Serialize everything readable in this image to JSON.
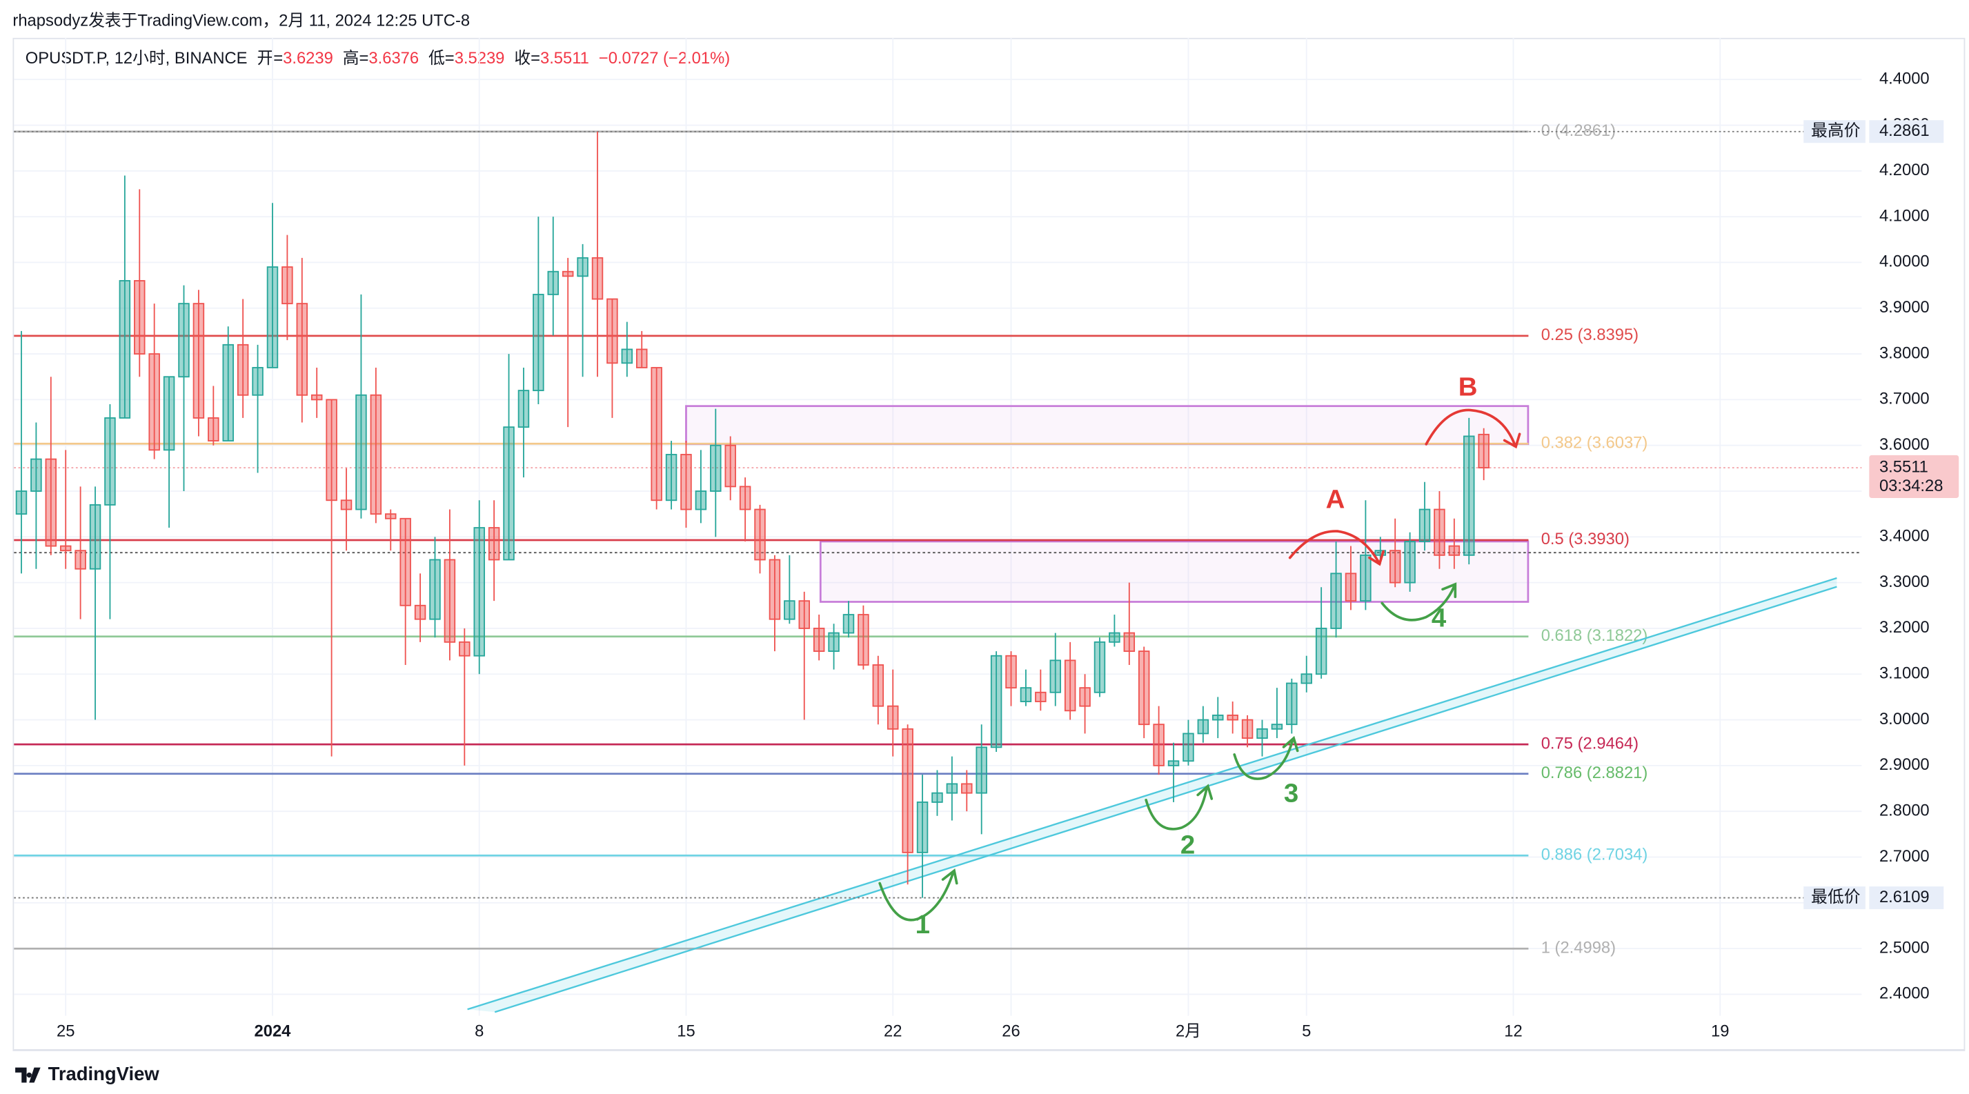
{
  "chart_data": {
    "type": "candlestick",
    "publisher": "rhapsodyz发表于TradingView.com，2月 11, 2024 12:25 UTC-8",
    "symbol": "OPUSDT.P, 12小时, BINANCE",
    "ohlc_labels": [
      "开=",
      "高=",
      "低=",
      "收="
    ],
    "change_text": "−0.0727 (−2.01%)",
    "countdown": "03:34:28",
    "high_label": "最高价",
    "low_label": "最低价",
    "brand": "TradingView",
    "up_color": "#26a69a",
    "down_color": "#ef5350",
    "open": [
      3.45,
      3.5,
      3.57,
      3.38,
      3.37,
      3.33,
      3.47,
      3.66,
      3.96,
      3.8,
      3.59,
      3.75,
      3.91,
      3.66,
      3.61,
      3.82,
      3.71,
      3.77,
      3.99,
      3.91,
      3.71,
      3.7,
      3.48,
      3.46,
      3.71,
      3.45,
      3.44,
      3.25,
      3.22,
      3.35,
      3.17,
      3.14,
      3.42,
      3.35,
      3.64,
      3.72,
      3.93,
      3.98,
      3.97,
      4.01,
      3.92,
      3.78,
      3.81,
      3.77,
      3.48,
      3.58,
      3.46,
      3.5,
      3.6,
      3.51,
      3.46,
      3.35,
      3.22,
      3.26,
      3.2,
      3.15,
      3.19,
      3.23,
      3.12,
      3.03,
      2.98,
      2.71,
      2.82,
      2.84,
      2.86,
      2.84,
      2.94,
      3.14,
      3.04,
      3.06,
      3.06,
      3.13,
      3.07,
      3.06,
      3.17,
      3.19,
      3.15,
      2.99,
      2.9,
      2.91,
      2.97,
      3.0,
      3.01,
      3.0,
      2.96,
      2.98,
      2.99,
      3.08,
      3.1,
      3.2,
      3.32,
      3.26,
      3.36,
      3.37,
      3.3,
      3.39,
      3.46,
      3.38,
      3.36,
      3.6239
    ],
    "high": [
      3.85,
      3.65,
      3.75,
      3.59,
      3.51,
      3.51,
      3.69,
      4.19,
      4.16,
      3.91,
      3.75,
      3.95,
      3.94,
      3.73,
      3.86,
      3.92,
      3.82,
      4.13,
      4.06,
      4.01,
      3.77,
      3.7,
      3.55,
      3.93,
      3.77,
      3.46,
      3.44,
      3.32,
      3.4,
      3.46,
      3.2,
      3.48,
      3.48,
      3.8,
      3.77,
      4.1,
      4.1,
      4.01,
      4.04,
      4.2861,
      3.92,
      3.87,
      3.85,
      3.77,
      3.61,
      3.61,
      3.59,
      3.68,
      3.62,
      3.53,
      3.47,
      3.36,
      3.36,
      3.28,
      3.23,
      3.21,
      3.26,
      3.25,
      3.14,
      3.11,
      2.99,
      2.88,
      2.89,
      2.92,
      2.89,
      2.99,
      3.15,
      3.15,
      3.11,
      3.11,
      3.19,
      3.17,
      3.1,
      3.18,
      3.23,
      3.3,
      3.16,
      3.03,
      2.95,
      3.0,
      3.03,
      3.05,
      3.04,
      3.01,
      3.0,
      3.07,
      3.09,
      3.14,
      3.29,
      3.39,
      3.38,
      3.48,
      3.4,
      3.44,
      3.41,
      3.52,
      3.5,
      3.44,
      3.66,
      3.6376
    ],
    "low": [
      3.32,
      3.33,
      3.36,
      3.33,
      3.22,
      3.0,
      3.22,
      3.66,
      3.75,
      3.57,
      3.42,
      3.5,
      3.62,
      3.6,
      3.61,
      3.66,
      3.54,
      3.77,
      3.83,
      3.65,
      3.66,
      2.92,
      3.37,
      3.44,
      3.43,
      3.37,
      3.12,
      3.17,
      3.18,
      3.13,
      2.9,
      3.1,
      3.26,
      3.35,
      3.53,
      3.69,
      3.84,
      3.64,
      3.75,
      3.75,
      3.66,
      3.75,
      3.77,
      3.46,
      3.46,
      3.42,
      3.43,
      3.4,
      3.48,
      3.39,
      3.32,
      3.15,
      3.21,
      3.0,
      3.13,
      3.11,
      3.18,
      3.11,
      2.99,
      2.92,
      2.64,
      2.6109,
      2.79,
      2.78,
      2.8,
      2.75,
      2.93,
      3.03,
      3.03,
      3.02,
      3.03,
      3.0,
      2.97,
      3.05,
      3.16,
      3.12,
      2.96,
      2.88,
      2.82,
      2.9,
      2.95,
      2.96,
      2.97,
      2.94,
      2.92,
      2.96,
      2.97,
      3.06,
      3.09,
      3.18,
      3.24,
      3.24,
      3.34,
      3.29,
      3.28,
      3.37,
      3.33,
      3.33,
      3.34,
      3.5239
    ],
    "close": [
      3.5,
      3.57,
      3.38,
      3.37,
      3.33,
      3.47,
      3.66,
      3.96,
      3.8,
      3.59,
      3.75,
      3.91,
      3.66,
      3.61,
      3.82,
      3.71,
      3.77,
      3.99,
      3.91,
      3.71,
      3.7,
      3.48,
      3.46,
      3.71,
      3.45,
      3.44,
      3.25,
      3.22,
      3.35,
      3.17,
      3.14,
      3.42,
      3.35,
      3.64,
      3.72,
      3.93,
      3.98,
      3.97,
      4.01,
      3.92,
      3.78,
      3.81,
      3.77,
      3.48,
      3.58,
      3.46,
      3.5,
      3.6,
      3.51,
      3.46,
      3.35,
      3.22,
      3.26,
      3.2,
      3.15,
      3.19,
      3.23,
      3.12,
      3.03,
      2.98,
      2.71,
      2.82,
      2.84,
      2.86,
      2.84,
      2.94,
      3.14,
      3.07,
      3.07,
      3.04,
      3.13,
      3.02,
      3.03,
      3.17,
      3.19,
      3.15,
      2.99,
      2.9,
      2.91,
      2.97,
      3.0,
      3.01,
      3.0,
      2.96,
      2.98,
      2.99,
      3.08,
      3.1,
      3.2,
      3.32,
      3.26,
      3.36,
      3.37,
      3.3,
      3.39,
      3.46,
      3.36,
      3.36,
      3.62,
      3.5511
    ],
    "xlim": [
      -0.5,
      131.5
    ],
    "xticks": [
      {
        "value": 3,
        "label": "25"
      },
      {
        "value": 17,
        "label": "2024",
        "bold": true
      },
      {
        "value": 31,
        "label": "8"
      },
      {
        "value": 45,
        "label": "15"
      },
      {
        "value": 59,
        "label": "22"
      },
      {
        "value": 67,
        "label": "26"
      },
      {
        "value": 79,
        "label": "2月"
      },
      {
        "value": 87,
        "label": "5"
      },
      {
        "value": 101,
        "label": "12"
      },
      {
        "value": 115,
        "label": "19"
      }
    ],
    "ylim": [
      2.353,
      4.491
    ],
    "yticks": [
      {
        "value": 2.4,
        "label": "2.4000"
      },
      {
        "value": 2.5,
        "label": "2.5000"
      },
      {
        "value": 2.6,
        "label": "2.6000"
      },
      {
        "value": 2.7,
        "label": "2.7000"
      },
      {
        "value": 2.8,
        "label": "2.8000"
      },
      {
        "value": 2.9,
        "label": "2.9000"
      },
      {
        "value": 3.0,
        "label": "3.0000"
      },
      {
        "value": 3.1,
        "label": "3.1000"
      },
      {
        "value": 3.2,
        "label": "3.2000"
      },
      {
        "value": 3.3,
        "label": "3.3000"
      },
      {
        "value": 3.4,
        "label": "3.4000"
      },
      {
        "value": 3.5,
        "label": "3.5000"
      },
      {
        "value": 3.6,
        "label": "3.6000"
      },
      {
        "value": 3.7,
        "label": "3.7000"
      },
      {
        "value": 3.8,
        "label": "3.8000"
      },
      {
        "value": 3.9,
        "label": "3.9000"
      },
      {
        "value": 4.0,
        "label": "4.0000"
      },
      {
        "value": 4.1,
        "label": "4.1000"
      },
      {
        "value": 4.2,
        "label": "4.2000"
      },
      {
        "value": 4.3,
        "label": "4.3000"
      },
      {
        "value": 4.4,
        "label": "4.4000"
      }
    ],
    "grid": true,
    "fib_levels": [
      {
        "value": 4.2861,
        "label": "0 (4.2861)",
        "color": "#b0b0b0"
      },
      {
        "value": 3.8395,
        "label": "0.25 (3.8395)",
        "color": "#e04b4b"
      },
      {
        "value": 3.6037,
        "label": "0.382 (3.6037)",
        "color": "#f3c88a"
      },
      {
        "value": 3.393,
        "label": "0.5 (3.3930)",
        "color": "#d83d4a"
      },
      {
        "value": 3.1822,
        "label": "0.618 (3.1822)",
        "color": "#8fc997"
      },
      {
        "value": 2.9464,
        "label": "0.75 (2.9464)",
        "color": "#c62855"
      },
      {
        "value": 2.8821,
        "label": "0.786 (2.8821)",
        "color": "#6c7fc2",
        "label_color": "#66bb6a"
      },
      {
        "value": 2.7034,
        "label": "0.886 (2.7034)",
        "color": "#6fd3e3"
      },
      {
        "value": 2.4998,
        "label": "1 (2.4998)",
        "color": "#b0b0b0"
      }
    ],
    "zones": [
      {
        "x": [
          45,
          102
        ],
        "y": [
          3.603,
          3.686
        ]
      },
      {
        "x": [
          54.1,
          102
        ],
        "y": [
          3.258,
          3.39
        ]
      }
    ],
    "zone_color": "#c77dd9",
    "trendlines": [
      {
        "x": [
          30.2,
          122.9
        ],
        "y": [
          2.367,
          3.31
        ]
      },
      {
        "x": [
          32.05,
          122.9
        ],
        "y": [
          2.361,
          3.291
        ]
      }
    ],
    "trend_color": "#4dc8dc",
    "horizontal_lines": [
      3.3655
    ],
    "annotations": [
      "1",
      "2",
      "3",
      "4",
      "A",
      "B"
    ]
  }
}
